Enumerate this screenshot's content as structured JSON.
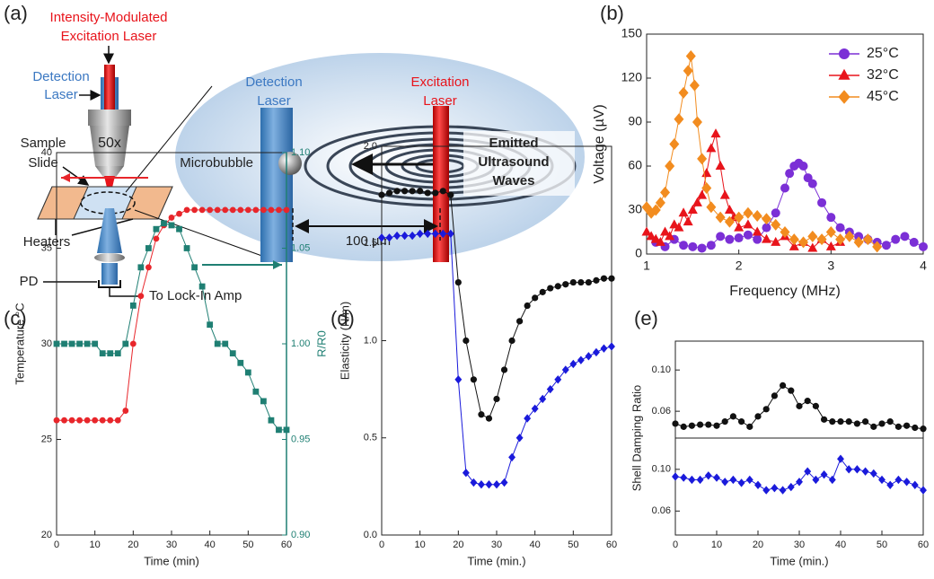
{
  "panel_labels": [
    "(a)",
    "(b)",
    "(c)",
    "(d)",
    "(e)"
  ],
  "diagram": {
    "excitation_title": [
      "Intensity-Modulated",
      "Excitation Laser"
    ],
    "detection_left": [
      "Detection",
      "Laser"
    ],
    "objective": "50x",
    "sample_slide": [
      "Sample",
      "Slide"
    ],
    "heaters": "Heaters",
    "pd": "PD",
    "lock_in": "To Lock-In Amp",
    "detection_zoom": [
      "Detection",
      "Laser"
    ],
    "excitation_zoom": [
      "Excitation",
      "Laser"
    ],
    "microbubble": "Microbubble",
    "waves": [
      "Emitted",
      "Ultrasound",
      "Waves"
    ],
    "distance": "100 µm"
  },
  "chart_data": [
    {
      "type": "line",
      "xlabel": "Frequency (MHz)",
      "ylabel": "Voltage (µV)",
      "xlim": [
        1,
        4
      ],
      "xticks": [
        1,
        2,
        3,
        4
      ],
      "ylim": [
        0,
        150
      ],
      "yticks": [
        0,
        30,
        60,
        90,
        120,
        150
      ],
      "legend": "upper right",
      "series": [
        {
          "name": "25°C",
          "color": "#7b2fd6",
          "marker": "circle",
          "x": [
            1.1,
            1.2,
            1.3,
            1.4,
            1.5,
            1.6,
            1.7,
            1.8,
            1.9,
            2.0,
            2.1,
            2.2,
            2.3,
            2.4,
            2.5,
            2.55,
            2.6,
            2.65,
            2.7,
            2.75,
            2.8,
            2.9,
            3.0,
            3.1,
            3.2,
            3.3,
            3.4,
            3.5,
            3.6,
            3.7,
            3.8,
            3.9,
            4.0
          ],
          "values": [
            8,
            5,
            10,
            6,
            5,
            4,
            6,
            12,
            10,
            11,
            13,
            10,
            18,
            28,
            45,
            55,
            60,
            62,
            60,
            52,
            48,
            35,
            25,
            18,
            15,
            12,
            10,
            8,
            6,
            10,
            12,
            8,
            5
          ]
        },
        {
          "name": "32°C",
          "color": "#e8141b",
          "marker": "triangle",
          "x": [
            1.0,
            1.05,
            1.1,
            1.15,
            1.2,
            1.25,
            1.3,
            1.35,
            1.4,
            1.45,
            1.5,
            1.55,
            1.6,
            1.65,
            1.7,
            1.75,
            1.8,
            1.85,
            1.9,
            1.95,
            2.0,
            2.1,
            2.2,
            2.3,
            2.4,
            2.5,
            2.6,
            2.7,
            2.8,
            2.9,
            3.0,
            3.1
          ],
          "values": [
            15,
            12,
            10,
            8,
            15,
            12,
            20,
            18,
            28,
            22,
            30,
            35,
            40,
            55,
            72,
            82,
            60,
            40,
            30,
            25,
            18,
            20,
            15,
            10,
            8,
            12,
            5,
            8,
            4,
            10,
            5,
            8
          ]
        },
        {
          "name": "45°C",
          "color": "#f28c1f",
          "marker": "diamond",
          "x": [
            1.0,
            1.05,
            1.1,
            1.15,
            1.2,
            1.25,
            1.3,
            1.35,
            1.4,
            1.45,
            1.48,
            1.52,
            1.55,
            1.6,
            1.65,
            1.7,
            1.8,
            1.9,
            2.0,
            2.1,
            2.2,
            2.3,
            2.4,
            2.5,
            2.6,
            2.7,
            2.8,
            2.9,
            3.0,
            3.1,
            3.2,
            3.3,
            3.4,
            3.5
          ],
          "values": [
            32,
            28,
            30,
            35,
            42,
            60,
            75,
            92,
            110,
            125,
            135,
            115,
            90,
            65,
            45,
            32,
            25,
            22,
            25,
            28,
            26,
            24,
            20,
            15,
            10,
            8,
            12,
            10,
            15,
            10,
            12,
            8,
            10,
            5
          ]
        }
      ]
    },
    {
      "type": "line",
      "xlabel": "Time (min)",
      "ylabel": "Temperature °C",
      "y2label": "R/R0",
      "xlim": [
        0,
        60
      ],
      "xticks": [
        0,
        10,
        20,
        30,
        40,
        50,
        60
      ],
      "ylim": [
        20,
        40
      ],
      "yticks": [
        20,
        25,
        30,
        35,
        40
      ],
      "y2lim": [
        0.9,
        1.1
      ],
      "y2ticks": [
        {
          "value": 0.9,
          "label": "0.90"
        },
        {
          "value": 0.95,
          "label": "0.95"
        },
        {
          "value": 1.0,
          "label": "1.00"
        },
        {
          "value": 1.05,
          "label": "1.05"
        },
        {
          "value": 1.1,
          "label": "1.10"
        }
      ],
      "x": [
        0,
        2,
        4,
        6,
        8,
        10,
        12,
        14,
        16,
        18,
        20,
        22,
        24,
        26,
        28,
        30,
        32,
        34,
        36,
        38,
        40,
        42,
        44,
        46,
        48,
        50,
        52,
        54,
        56,
        58,
        60
      ],
      "series": [
        {
          "color": "#e8262b",
          "marker": "circle",
          "values": [
            26,
            26,
            26,
            26,
            26,
            26,
            26,
            26,
            26,
            26.5,
            30,
            32.5,
            34,
            35.5,
            36.2,
            36.6,
            36.8,
            37,
            37,
            37,
            37,
            37,
            37,
            37,
            37,
            37,
            37,
            37,
            37,
            37,
            37
          ]
        },
        {
          "color": "#1f7f73",
          "marker": "square",
          "axis": "y2",
          "values": [
            1.0,
            1.0,
            1.0,
            1.0,
            1.0,
            1.0,
            0.995,
            0.995,
            0.995,
            1.0,
            1.02,
            1.04,
            1.05,
            1.06,
            1.063,
            1.062,
            1.06,
            1.05,
            1.04,
            1.03,
            1.01,
            1.0,
            1.0,
            0.995,
            0.99,
            0.985,
            0.975,
            0.97,
            0.96,
            0.955,
            0.955
          ]
        }
      ]
    },
    {
      "type": "line",
      "xlabel": "Time (min.)",
      "ylabel": "Elasticity (N/m)",
      "xlim": [
        0,
        60
      ],
      "xticks": [
        0,
        10,
        20,
        30,
        40,
        50,
        60
      ],
      "ylim": [
        0,
        2
      ],
      "yticks": [
        {
          "value": 0,
          "label": "0.0"
        },
        {
          "value": 0.5,
          "label": "0.5"
        },
        {
          "value": 1,
          "label": "1.0"
        },
        {
          "value": 1.5,
          "label": "1.5"
        },
        {
          "value": 2,
          "label": "2.0"
        }
      ],
      "x": [
        0,
        2,
        4,
        6,
        8,
        10,
        12,
        14,
        16,
        18,
        20,
        22,
        24,
        26,
        28,
        30,
        32,
        34,
        36,
        38,
        40,
        42,
        44,
        46,
        48,
        50,
        52,
        54,
        56,
        58,
        60
      ],
      "series": [
        {
          "color": "#111111",
          "marker": "circle",
          "values": [
            1.75,
            1.76,
            1.77,
            1.77,
            1.77,
            1.77,
            1.76,
            1.76,
            1.77,
            1.75,
            1.3,
            1.0,
            0.8,
            0.62,
            0.6,
            0.7,
            0.85,
            1.0,
            1.1,
            1.18,
            1.22,
            1.25,
            1.27,
            1.28,
            1.29,
            1.3,
            1.3,
            1.3,
            1.31,
            1.32,
            1.32
          ]
        },
        {
          "color": "#1a1adb",
          "marker": "diamond",
          "values": [
            1.53,
            1.53,
            1.54,
            1.54,
            1.54,
            1.55,
            1.55,
            1.55,
            1.55,
            1.55,
            0.8,
            0.32,
            0.27,
            0.26,
            0.26,
            0.26,
            0.27,
            0.4,
            0.5,
            0.6,
            0.65,
            0.7,
            0.75,
            0.8,
            0.85,
            0.88,
            0.9,
            0.92,
            0.94,
            0.96,
            0.97
          ]
        }
      ]
    },
    {
      "type": "line",
      "ylabel": "Shell Damping Ratio",
      "xlim": [
        0,
        60
      ],
      "ylim": [
        0.034,
        0.128
      ],
      "yticks": [
        {
          "value": 0.06,
          "label": "0.06"
        },
        {
          "value": 0.1,
          "label": "0.10"
        }
      ],
      "x": [
        0,
        2,
        4,
        6,
        8,
        10,
        12,
        14,
        16,
        18,
        20,
        22,
        24,
        26,
        28,
        30,
        32,
        34,
        36,
        38,
        40,
        42,
        44,
        46,
        48,
        50,
        52,
        54,
        56,
        58,
        60
      ],
      "series": [
        {
          "color": "#111111",
          "marker": "circle",
          "values": [
            0.048,
            0.045,
            0.046,
            0.047,
            0.047,
            0.046,
            0.05,
            0.055,
            0.05,
            0.045,
            0.055,
            0.062,
            0.075,
            0.085,
            0.08,
            0.065,
            0.07,
            0.065,
            0.052,
            0.05,
            0.05,
            0.05,
            0.048,
            0.05,
            0.045,
            0.048,
            0.05,
            0.045,
            0.046,
            0.044,
            0.043
          ]
        }
      ]
    },
    {
      "type": "line",
      "xlabel": "Time (min.)",
      "xlim": [
        0,
        60
      ],
      "xticks": [
        0,
        10,
        20,
        30,
        40,
        50,
        60
      ],
      "ylim": [
        0.037,
        0.13
      ],
      "yticks": [
        {
          "value": 0.06,
          "label": "0.06"
        },
        {
          "value": 0.1,
          "label": "0.10"
        }
      ],
      "x": [
        0,
        2,
        4,
        6,
        8,
        10,
        12,
        14,
        16,
        18,
        20,
        22,
        24,
        26,
        28,
        30,
        32,
        34,
        36,
        38,
        40,
        42,
        44,
        46,
        48,
        50,
        52,
        54,
        56,
        58,
        60
      ],
      "series": [
        {
          "color": "#1a1adb",
          "marker": "diamond",
          "values": [
            0.093,
            0.092,
            0.09,
            0.09,
            0.094,
            0.092,
            0.088,
            0.09,
            0.087,
            0.09,
            0.085,
            0.08,
            0.082,
            0.08,
            0.083,
            0.088,
            0.098,
            0.09,
            0.095,
            0.09,
            0.11,
            0.1,
            0.1,
            0.098,
            0.096,
            0.09,
            0.085,
            0.09,
            0.088,
            0.085,
            0.08
          ]
        }
      ]
    }
  ]
}
